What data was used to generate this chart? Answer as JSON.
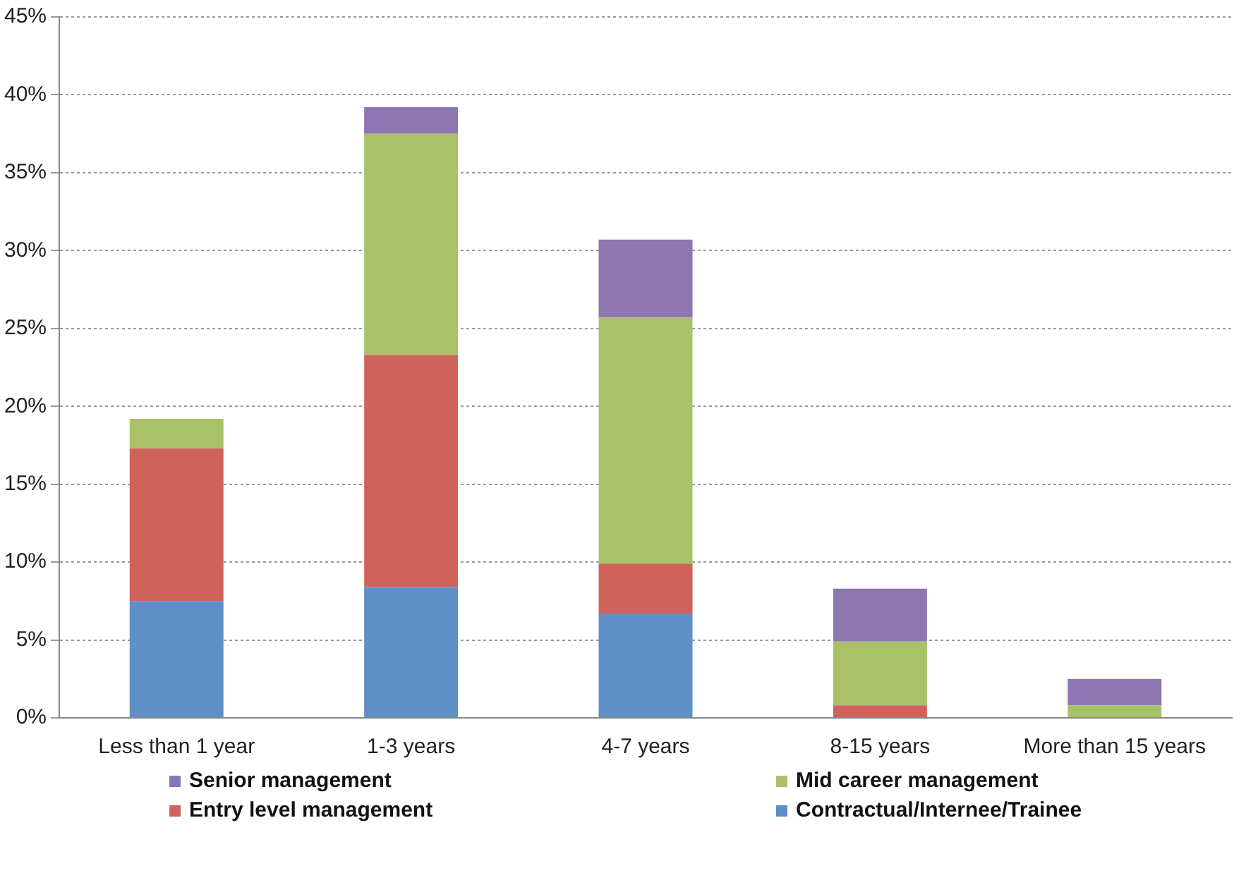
{
  "chart_data": {
    "type": "bar",
    "stacked": true,
    "categories": [
      "Less than 1 year",
      "1-3 years",
      "4-7 years",
      "8-15 years",
      "More than 15 years"
    ],
    "series": [
      {
        "name": "Contractual/Internee/Trainee",
        "color": "#5e8fc6",
        "values": [
          7.5,
          8.4,
          6.7,
          0,
          0
        ]
      },
      {
        "name": "Entry level management",
        "color": "#d0625c",
        "values": [
          9.8,
          14.9,
          3.2,
          0.8,
          0
        ]
      },
      {
        "name": "Mid career management",
        "color": "#a9c26a",
        "values": [
          1.9,
          14.2,
          15.8,
          4.1,
          0.8
        ]
      },
      {
        "name": "Senior management",
        "color": "#8e76b0",
        "values": [
          0,
          1.7,
          5.0,
          3.4,
          1.7
        ]
      }
    ],
    "ylim": [
      0,
      45
    ],
    "yticks": [
      {
        "value": 0,
        "label": "0%"
      },
      {
        "value": 5,
        "label": "5%"
      },
      {
        "value": 10,
        "label": "10%"
      },
      {
        "value": 15,
        "label": "15%"
      },
      {
        "value": 20,
        "label": "20%"
      },
      {
        "value": 25,
        "label": "25%"
      },
      {
        "value": 30,
        "label": "30%"
      },
      {
        "value": 35,
        "label": "35%"
      },
      {
        "value": 40,
        "label": "40%"
      },
      {
        "value": 45,
        "label": "45%"
      }
    ],
    "grid": "y",
    "legend": "bottom"
  }
}
